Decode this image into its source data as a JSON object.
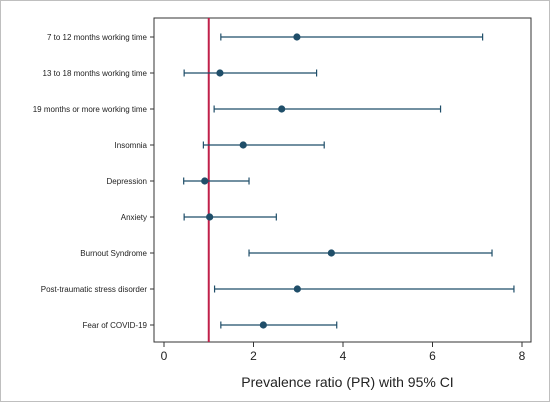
{
  "chart_data": {
    "type": "forest",
    "xlabel": "Prevalence ratio (PR) with 95% CI",
    "xlim": [
      0,
      8
    ],
    "xticks": [
      0,
      2,
      4,
      6,
      8
    ],
    "reference_line": 1,
    "colors": {
      "marker": "#1f4e69",
      "reference": "#c0204a",
      "axis": "#333333"
    },
    "categories": [
      "7 to 12 months working time",
      "13 to 18 months working time",
      "19 months or more working time",
      "Insomnia",
      "Depression",
      "Anxiety",
      "Burnout Syndrome",
      "Post-traumatic stress disorder",
      "Fear of COVID-19"
    ],
    "values": [
      2.97,
      1.25,
      2.63,
      1.77,
      0.91,
      1.02,
      3.74,
      2.98,
      2.22
    ],
    "ci_low": [
      1.27,
      0.45,
      1.12,
      0.88,
      0.44,
      0.45,
      1.9,
      1.13,
      1.27
    ],
    "ci_high": [
      7.12,
      3.41,
      6.18,
      3.58,
      1.9,
      2.51,
      7.33,
      7.82,
      3.86
    ]
  }
}
